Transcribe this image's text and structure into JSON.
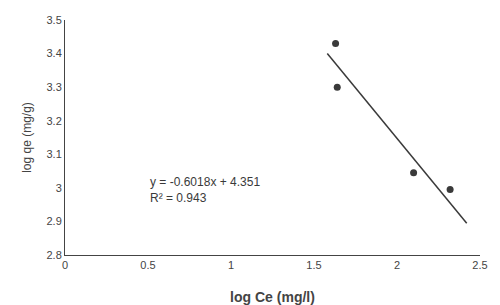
{
  "chart_data": {
    "type": "scatter",
    "xlabel": "log Ce (mg/l)",
    "ylabel": "log qe (mg/g)",
    "color": "#3a3a3a",
    "series": [
      {
        "type": "scatter",
        "x": [
          1.63,
          1.64,
          2.1,
          2.32
        ],
        "values": [
          3.43,
          3.3,
          3.045,
          2.995
        ]
      },
      {
        "type": "line",
        "x": [
          1.58,
          2.42
        ],
        "values": [
          3.400156,
          2.894644
        ]
      }
    ],
    "annotations": [
      "y = -0.6018x + 4.351",
      "R² = 0.943"
    ],
    "xlim": [
      0,
      2.5
    ],
    "ylim": [
      2.8,
      3.5
    ],
    "xticks": [
      0,
      0.5,
      1,
      1.5,
      2,
      2.5
    ],
    "yticks": [
      2.8,
      2.9,
      3,
      3.1,
      3.2,
      3.3,
      3.4,
      3.5
    ],
    "grid": false
  }
}
